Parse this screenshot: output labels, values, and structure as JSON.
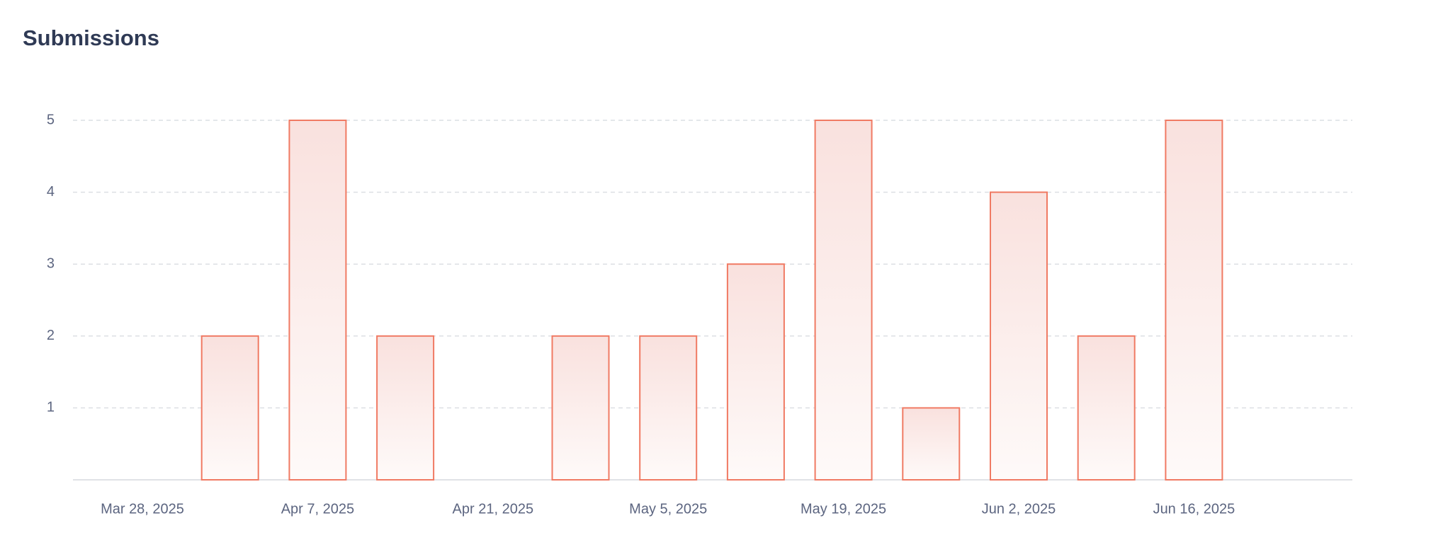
{
  "chart_data": {
    "type": "bar",
    "title": "Submissions",
    "categories": [
      "Mar 28, 2025",
      null,
      "Apr 7, 2025",
      null,
      "Apr 21, 2025",
      null,
      "May 5, 2025",
      null,
      "May 19, 2025",
      null,
      "Jun 2, 2025",
      null,
      "Jun 16, 2025"
    ],
    "values": [
      0,
      2,
      5,
      2,
      0,
      2,
      2,
      3,
      5,
      1,
      4,
      2,
      5
    ],
    "color": "#f07a63",
    "ylim": [
      0,
      5
    ],
    "yticks": [
      1,
      2,
      3,
      4,
      5
    ],
    "grid": true
  }
}
